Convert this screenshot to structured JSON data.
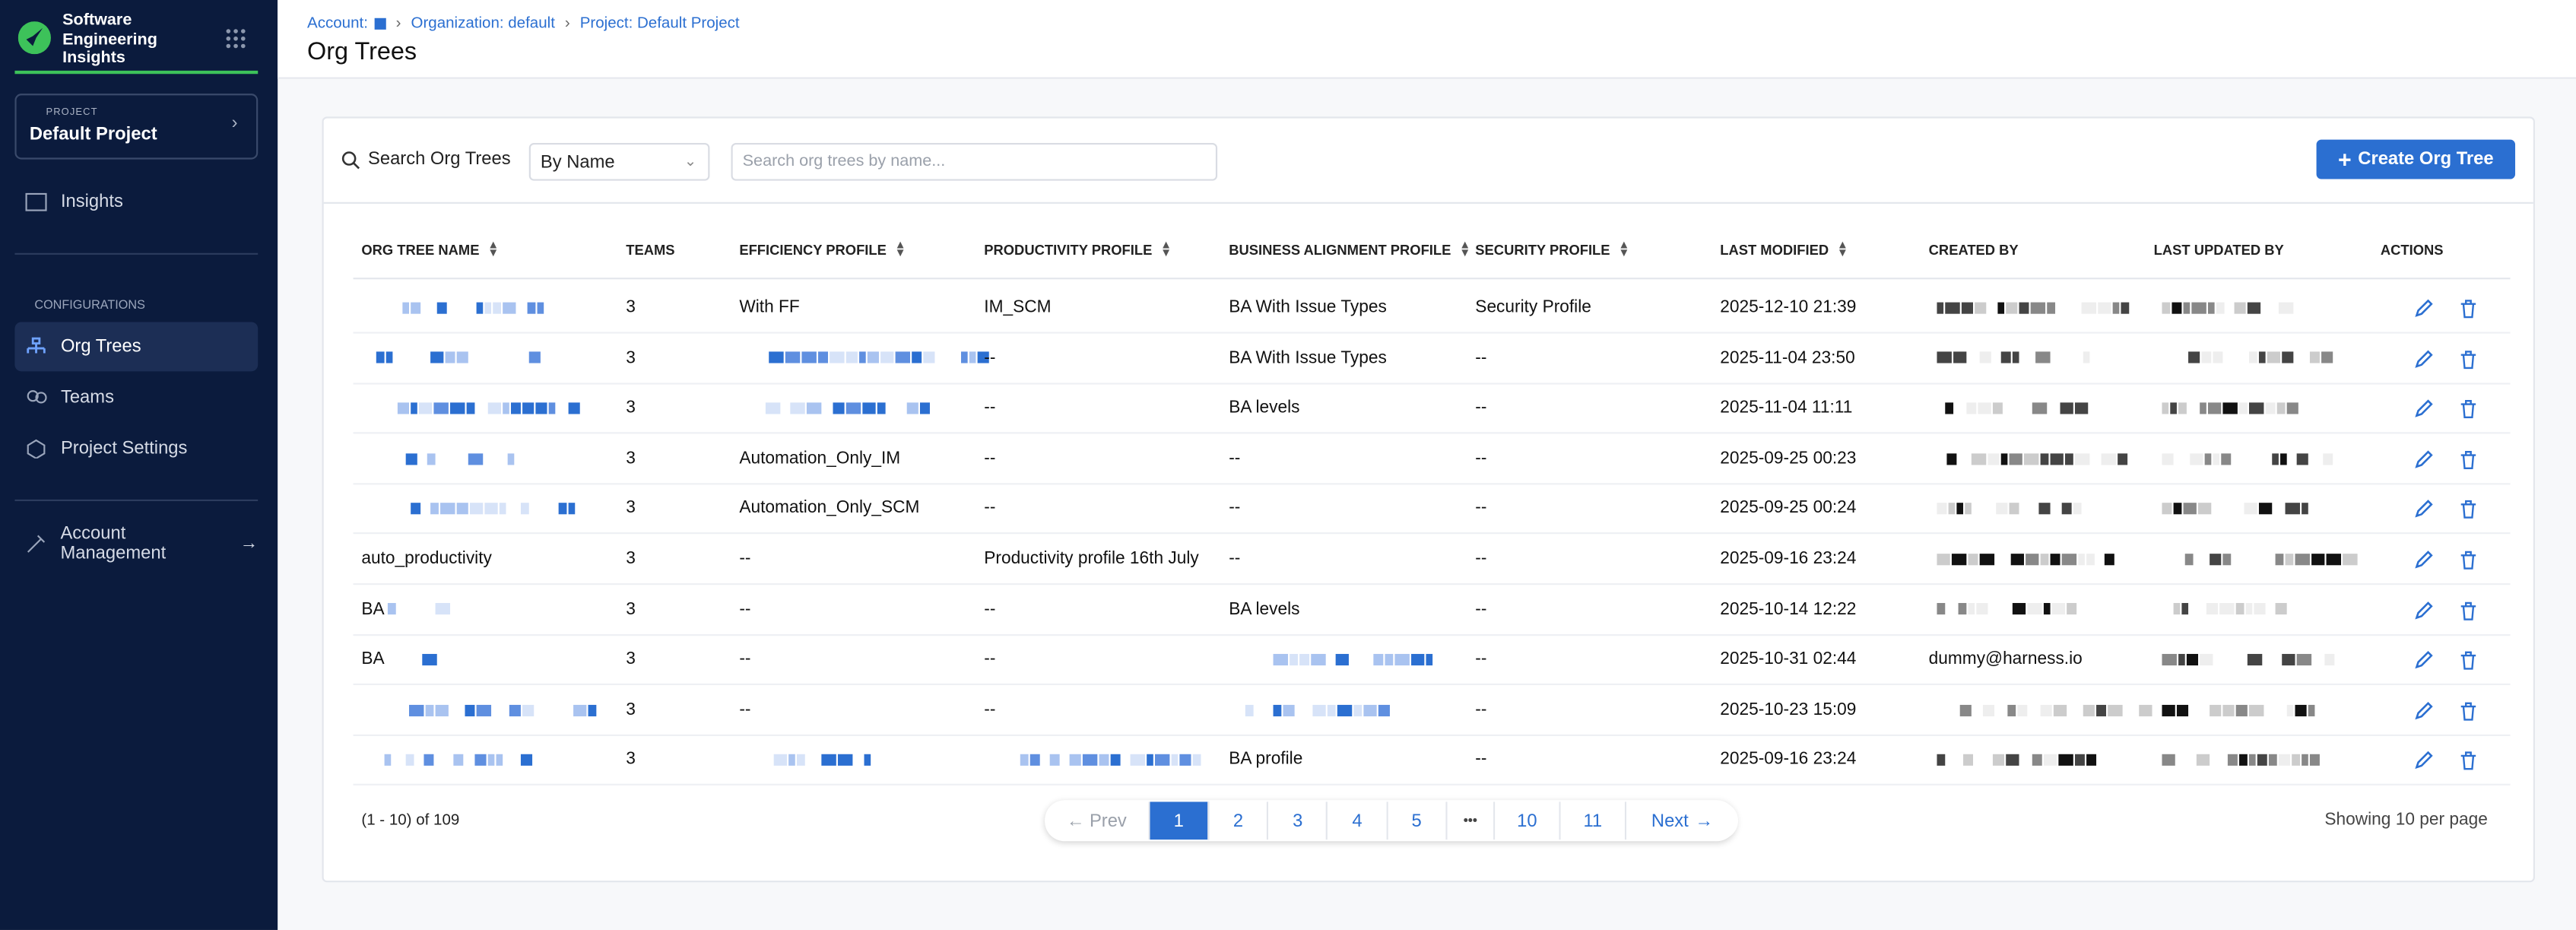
{
  "sidebar": {
    "product": "Software Engineering Insights",
    "project_label": "PROJECT",
    "project_name": "Default Project",
    "nav": {
      "insights": "Insights",
      "section": "CONFIGURATIONS",
      "org_trees": "Org Trees",
      "teams": "Teams",
      "project_settings": "Project Settings",
      "account_management": "Account Management"
    }
  },
  "header": {
    "breadcrumbs": [
      "Account:",
      "Organization: default",
      "Project: Default Project"
    ],
    "title": "Org Trees"
  },
  "toolbar": {
    "search_label": "Search Org Trees",
    "select": "By Name",
    "placeholder": "Search org trees by name...",
    "create_button": "Create Org Tree"
  },
  "table": {
    "columns": [
      "ORG TREE NAME",
      "TEAMS",
      "EFFICIENCY PROFILE",
      "PRODUCTIVITY PROFILE",
      "BUSINESS ALIGNMENT PROFILE",
      "SECURITY PROFILE",
      "LAST MODIFIED",
      "CREATED BY",
      "LAST UPDATED BY",
      "ACTIONS"
    ],
    "rows": [
      [
        null,
        "3",
        "With FF",
        "IM_SCM",
        "BA With Issue Types",
        "Security Profile",
        "2025-12-10 21:39",
        null,
        null
      ],
      [
        null,
        "3",
        null,
        "--",
        "BA With Issue Types",
        "--",
        "2025-11-04 23:50",
        null,
        null
      ],
      [
        null,
        "3",
        null,
        "--",
        "BA levels",
        "--",
        "2025-11-04 11:11",
        null,
        null
      ],
      [
        null,
        "3",
        "Automation_Only_IM",
        "--",
        "--",
        "--",
        "2025-09-25 00:23",
        null,
        null
      ],
      [
        null,
        "3",
        "Automation_Only_SCM",
        "--",
        "--",
        "--",
        "2025-09-25 00:24",
        null,
        null
      ],
      [
        "auto_productivity",
        "3",
        "--",
        "Productivity profile 16th July",
        "--",
        "--",
        "2025-09-16 23:24",
        null,
        null
      ],
      [
        "BA",
        "3",
        "--",
        "--",
        "BA levels",
        "--",
        "2025-10-14 12:22",
        null,
        null
      ],
      [
        "BA",
        "3",
        "--",
        "--",
        null,
        "--",
        "2025-10-31 02:44",
        "dummy@harness.io",
        null
      ],
      [
        null,
        "3",
        "--",
        "--",
        null,
        "--",
        "2025-10-23 15:09",
        null,
        null
      ],
      [
        null,
        "3",
        null,
        null,
        "BA profile",
        "--",
        "2025-09-16 23:24",
        null,
        null
      ]
    ]
  },
  "pagination": {
    "summary": "(1 - 10) of 109",
    "prev": "Prev",
    "pages": [
      "1",
      "2",
      "3",
      "4",
      "5",
      "10",
      "11"
    ],
    "next": "Next",
    "per_page": "Showing 10 per page"
  }
}
